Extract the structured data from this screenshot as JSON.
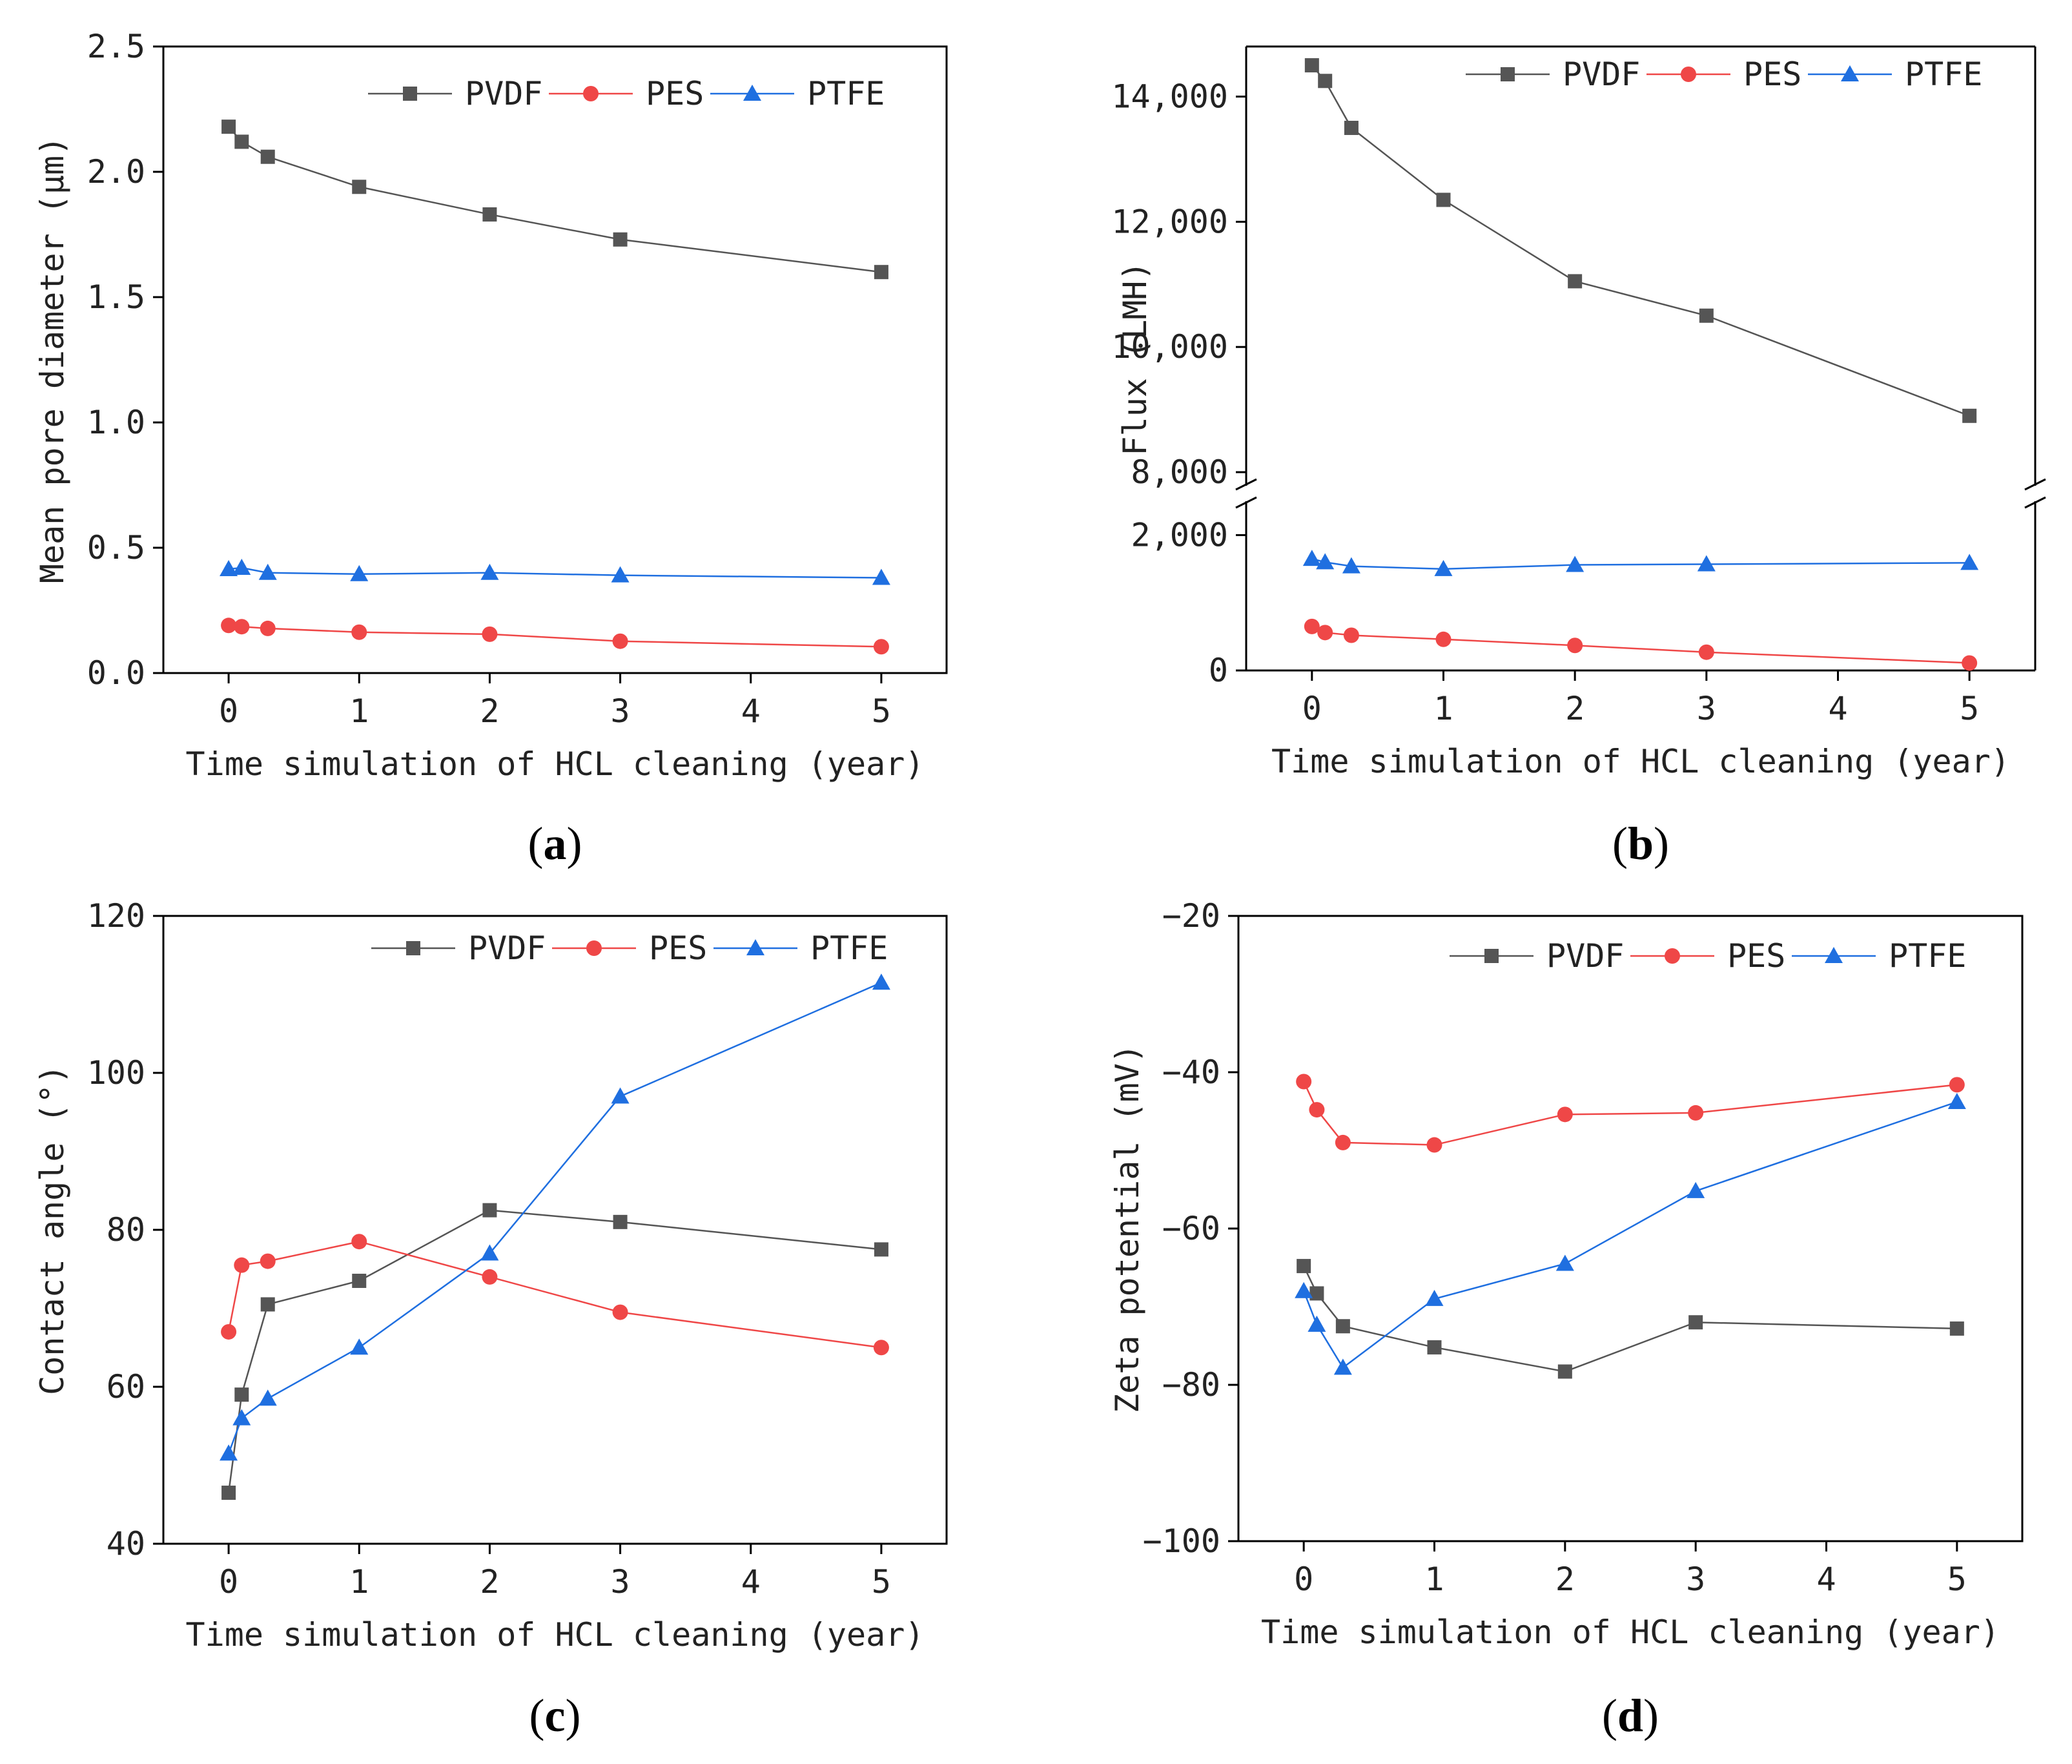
{
  "colors": {
    "PVDF": "#555555",
    "PES": "#ef4747",
    "PTFE": "#1f6fe0"
  },
  "chart_data": [
    {
      "type": "line",
      "panel": "a",
      "panel_label": "a",
      "xlabel": "Time simulation of HCL cleaning (year)",
      "ylabel": "Mean pore diameter (μm)",
      "xlim": [
        -0.5,
        5.5
      ],
      "xticks": [
        0,
        1,
        2,
        3,
        4,
        5
      ],
      "xtick_labels": [
        "0",
        "1",
        "2",
        "3",
        "4",
        "5"
      ],
      "ylim": [
        0,
        2.5
      ],
      "yticks": [
        0,
        0.5,
        1.0,
        1.5,
        2.0,
        2.5
      ],
      "ytick_labels": [
        "0.0",
        "0.5",
        "1.0",
        "1.5",
        "2.0",
        "2.5"
      ],
      "legend": "top-right",
      "series": [
        {
          "name": "PVDF",
          "marker": "square",
          "x": [
            0,
            0.1,
            0.3,
            1,
            2,
            3,
            5
          ],
          "y": [
            2.18,
            2.12,
            2.06,
            1.94,
            1.83,
            1.73,
            1.6
          ]
        },
        {
          "name": "PES",
          "marker": "circle",
          "x": [
            0,
            0.1,
            0.3,
            1,
            2,
            3,
            5
          ],
          "y": [
            0.19,
            0.185,
            0.178,
            0.163,
            0.155,
            0.127,
            0.105
          ]
        },
        {
          "name": "PTFE",
          "marker": "triangle",
          "x": [
            0,
            0.1,
            0.3,
            1,
            2,
            3,
            5
          ],
          "y": [
            0.415,
            0.42,
            0.4,
            0.395,
            0.4,
            0.39,
            0.38
          ]
        }
      ]
    },
    {
      "type": "line",
      "panel": "b",
      "panel_label": "b",
      "xlabel": "Time simulation of HCL cleaning (year)",
      "ylabel": "Flux (LMH)",
      "xlim": [
        -0.5,
        5.5
      ],
      "xticks": [
        0,
        1,
        2,
        3,
        4,
        5
      ],
      "xtick_labels": [
        "0",
        "1",
        "2",
        "3",
        "4",
        "5"
      ],
      "broken_axis": true,
      "ylim_upper": [
        8000,
        14800
      ],
      "yticks_upper": [
        8000,
        10000,
        12000,
        14000
      ],
      "ytick_labels_upper": [
        "8,000",
        "10,000",
        "12,000",
        "14,000"
      ],
      "ylim_lower": [
        0,
        2300
      ],
      "yticks_lower": [
        0,
        2000
      ],
      "ytick_labels_lower": [
        "0",
        "2,000"
      ],
      "legend": "top-right",
      "series": [
        {
          "name": "PVDF",
          "marker": "square",
          "x": [
            0,
            0.1,
            0.3,
            1,
            2,
            3,
            5
          ],
          "y": [
            14500,
            14250,
            13500,
            12350,
            11050,
            10500,
            8900
          ]
        },
        {
          "name": "PES",
          "marker": "circle",
          "x": [
            0,
            0.1,
            0.3,
            1,
            2,
            3,
            5
          ],
          "y": [
            650,
            560,
            520,
            460,
            370,
            270,
            110
          ]
        },
        {
          "name": "PTFE",
          "marker": "triangle",
          "x": [
            0,
            0.1,
            0.3,
            1,
            2,
            3,
            5
          ],
          "y": [
            1650,
            1600,
            1540,
            1500,
            1560,
            1570,
            1590
          ]
        }
      ]
    },
    {
      "type": "line",
      "panel": "c",
      "panel_label": "c",
      "xlabel": "Time simulation of HCL cleaning (year)",
      "ylabel": "Contact angle (°)",
      "xlim": [
        -0.5,
        5.5
      ],
      "xticks": [
        0,
        1,
        2,
        3,
        4,
        5
      ],
      "xtick_labels": [
        "0",
        "1",
        "2",
        "3",
        "4",
        "5"
      ],
      "ylim": [
        40,
        120
      ],
      "yticks": [
        40,
        60,
        80,
        100,
        120
      ],
      "ytick_labels": [
        "40",
        "60",
        "80",
        "100",
        "120"
      ],
      "legend": "top-right",
      "series": [
        {
          "name": "PVDF",
          "marker": "square",
          "x": [
            0,
            0.1,
            0.3,
            1,
            2,
            3,
            5
          ],
          "y": [
            46.5,
            59,
            70.5,
            73.5,
            82.5,
            81,
            77.5
          ]
        },
        {
          "name": "PES",
          "marker": "circle",
          "x": [
            0,
            0.1,
            0.3,
            1,
            2,
            3,
            5
          ],
          "y": [
            67,
            75.5,
            76,
            78.5,
            74,
            69.5,
            65
          ]
        },
        {
          "name": "PTFE",
          "marker": "triangle",
          "x": [
            0,
            0.1,
            0.3,
            1,
            2,
            3,
            5
          ],
          "y": [
            51.5,
            56,
            58.5,
            65,
            77,
            97,
            111.5
          ]
        }
      ]
    },
    {
      "type": "line",
      "panel": "d",
      "panel_label": "d",
      "xlabel": "Time simulation of HCL cleaning (year)",
      "ylabel": "Zeta potential (mV)",
      "xlim": [
        -0.5,
        5.5
      ],
      "xticks": [
        0,
        1,
        2,
        3,
        4,
        5
      ],
      "xtick_labels": [
        "0",
        "1",
        "2",
        "3",
        "4",
        "5"
      ],
      "ylim": [
        -100,
        -20
      ],
      "yticks": [
        -100,
        -80,
        -60,
        -40,
        -20
      ],
      "ytick_labels": [
        "−100",
        "−80",
        "−60",
        "−40",
        "−20"
      ],
      "legend": "top-right",
      "series": [
        {
          "name": "PVDF",
          "marker": "square",
          "x": [
            0,
            0.1,
            0.3,
            1,
            2,
            3,
            5
          ],
          "y": [
            -64.8,
            -68.3,
            -72.5,
            -75.2,
            -78.3,
            -72,
            -72.8
          ]
        },
        {
          "name": "PES",
          "marker": "circle",
          "x": [
            0,
            0.1,
            0.3,
            1,
            2,
            3,
            5
          ],
          "y": [
            -41.2,
            -44.8,
            -49,
            -49.3,
            -45.4,
            -45.2,
            -41.6
          ]
        },
        {
          "name": "PTFE",
          "marker": "triangle",
          "x": [
            0,
            0.1,
            0.3,
            1,
            2,
            3,
            5
          ],
          "y": [
            -68,
            -72.3,
            -77.8,
            -69,
            -64.5,
            -55.2,
            -43.8
          ]
        }
      ]
    }
  ]
}
